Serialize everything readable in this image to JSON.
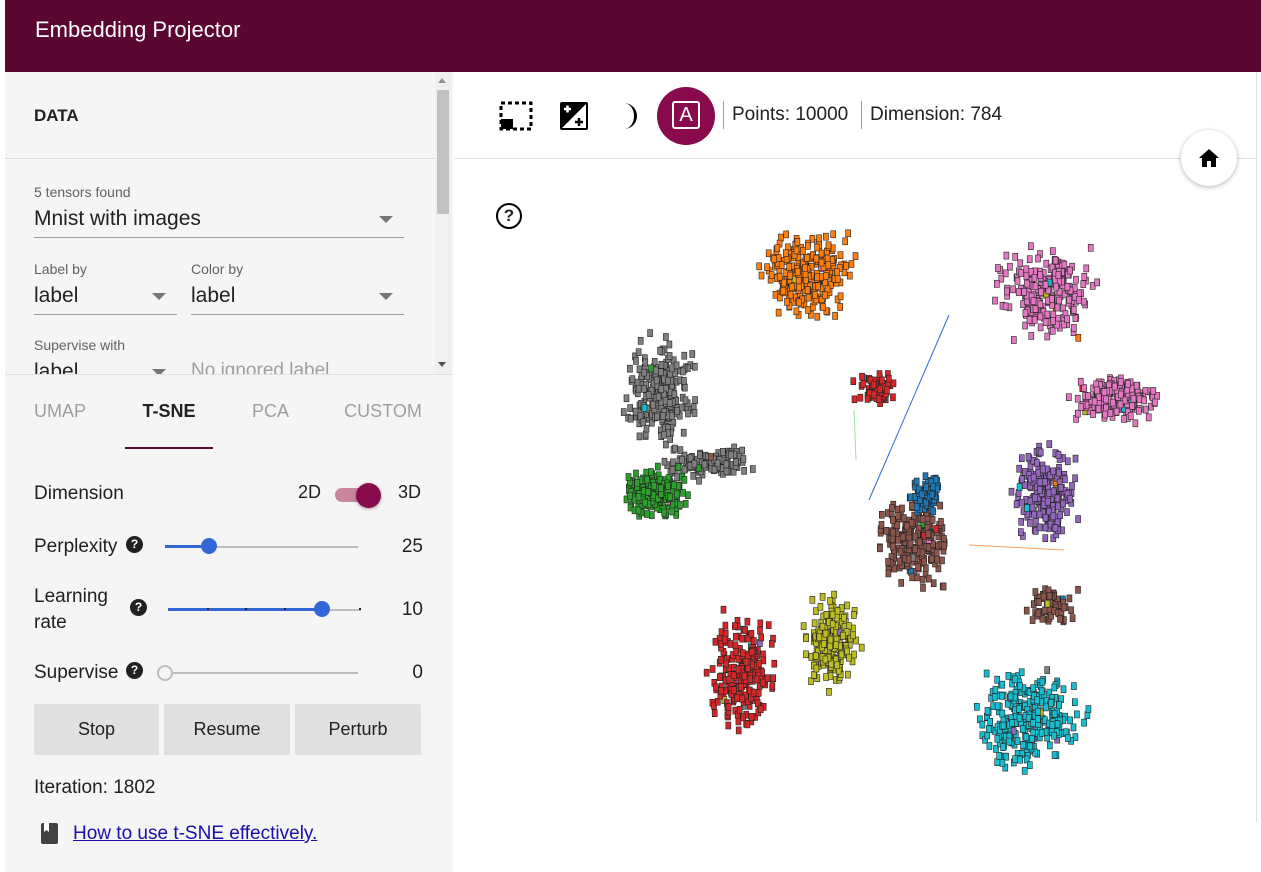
{
  "app": {
    "title": "Embedding Projector"
  },
  "data_panel": {
    "heading": "DATA",
    "tensors_found": "5 tensors found",
    "tensor_selected": "Mnist with images",
    "label_by_label": "Label by",
    "label_by_value": "label",
    "color_by_label": "Color by",
    "color_by_value": "label",
    "supervise_with_label": "Supervise with",
    "supervise_with_value": "label",
    "ignored_label_placeholder": "No ignored label"
  },
  "tabs": [
    {
      "label": "UMAP",
      "active": false
    },
    {
      "label": "T-SNE",
      "active": true
    },
    {
      "label": "PCA",
      "active": false
    },
    {
      "label": "CUSTOM",
      "active": false
    }
  ],
  "tsne": {
    "dimension_label": "Dimension",
    "dimension_2d": "2D",
    "dimension_3d": "3D",
    "dimension_is_3d": true,
    "perplexity_label": "Perplexity",
    "perplexity_value": "25",
    "perplexity_fraction": 0.23,
    "learning_rate_label_1": "Learning",
    "learning_rate_label_2": "rate",
    "learning_rate_value": "10",
    "learning_rate_fraction": 0.8,
    "supervise_label": "Supervise",
    "supervise_value": "0",
    "supervise_fraction": 0,
    "help_glyph": "?",
    "buttons": {
      "stop": "Stop",
      "resume": "Resume",
      "perturb": "Perturb"
    },
    "iteration": "Iteration: 1802",
    "help_link": "How to use t-SNE effectively."
  },
  "toolbar": {
    "label_mode_glyph": "A",
    "points": "Points: 10000",
    "dimension": "Dimension: 784",
    "icons": [
      "select-rectangle-icon",
      "night-mode-icon",
      "moon-icon",
      "label-mode-icon",
      "home-icon",
      "help-circle-icon"
    ]
  },
  "colors": {
    "header": "#5a0732",
    "accent": "#8a0a4e",
    "slider": "#3367d6",
    "clusters": [
      "#ff7f0e",
      "#e377c2",
      "#7f7f7f",
      "#2ca02c",
      "#d62728",
      "#8c564b",
      "#1f77b4",
      "#9467bd",
      "#bcbd22",
      "#17becf"
    ]
  }
}
